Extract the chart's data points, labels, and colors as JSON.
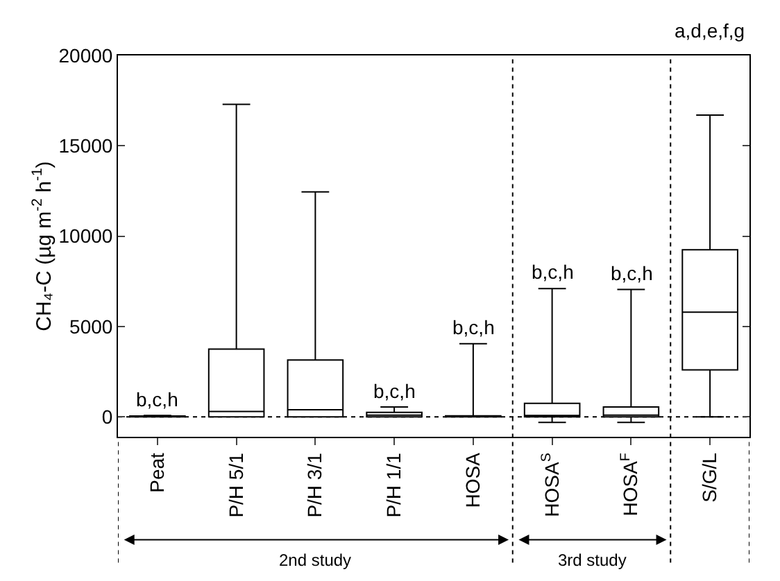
{
  "chart_data": {
    "type": "box",
    "ylabel": "CH₄-C (µg m$^{-2}$ h$^{-1}$)",
    "categories": [
      "Peat",
      "P/H 5/1",
      "P/H 3/1",
      "P/H 1/1",
      "HOSA",
      "HOSA$^{S}$",
      "HOSA$^{F}$",
      "S/G/L"
    ],
    "color": "#000000",
    "boxes": [
      {
        "low": 0,
        "q1": 0,
        "median": 20,
        "q3": 50,
        "high": 80
      },
      {
        "low": 0,
        "q1": 0,
        "median": 300,
        "q3": 3750,
        "high": 17300
      },
      {
        "low": 0,
        "q1": 0,
        "median": 400,
        "q3": 3150,
        "high": 12450
      },
      {
        "low": 0,
        "q1": 0,
        "median": 100,
        "q3": 250,
        "high": 550
      },
      {
        "low": 0,
        "q1": 0,
        "median": 30,
        "q3": 60,
        "high": 4050
      },
      {
        "low": -300,
        "q1": 0,
        "median": 50,
        "q3": 750,
        "high": 7100
      },
      {
        "low": -300,
        "q1": 0,
        "median": 100,
        "q3": 550,
        "high": 7050
      },
      {
        "low": 0,
        "q1": 2600,
        "median": 5800,
        "q3": 9250,
        "high": 16700
      }
    ],
    "ylim": [
      -1100,
      20000
    ],
    "yticks": [
      0,
      5000,
      10000,
      15000,
      20000
    ],
    "ref_lines": [
      {
        "axis": "y",
        "value": 0,
        "line_style": "dotted"
      }
    ],
    "annotations": [
      {
        "text": "b,c,h",
        "x": "Peat",
        "y": 80
      },
      {
        "text": "b,c,h",
        "x": "P/H 1/1",
        "y": 550
      },
      {
        "text": "b,c,h",
        "x": "HOSA",
        "y": 4050
      },
      {
        "text": "b,c,h",
        "x": "HOSA$^{S}$",
        "y": 7100
      },
      {
        "text": "b,c,h",
        "x": "HOSA$^{F}$",
        "y": 7050
      },
      "a,d,e,f,g",
      "2nd study",
      "3rd study"
    ]
  }
}
